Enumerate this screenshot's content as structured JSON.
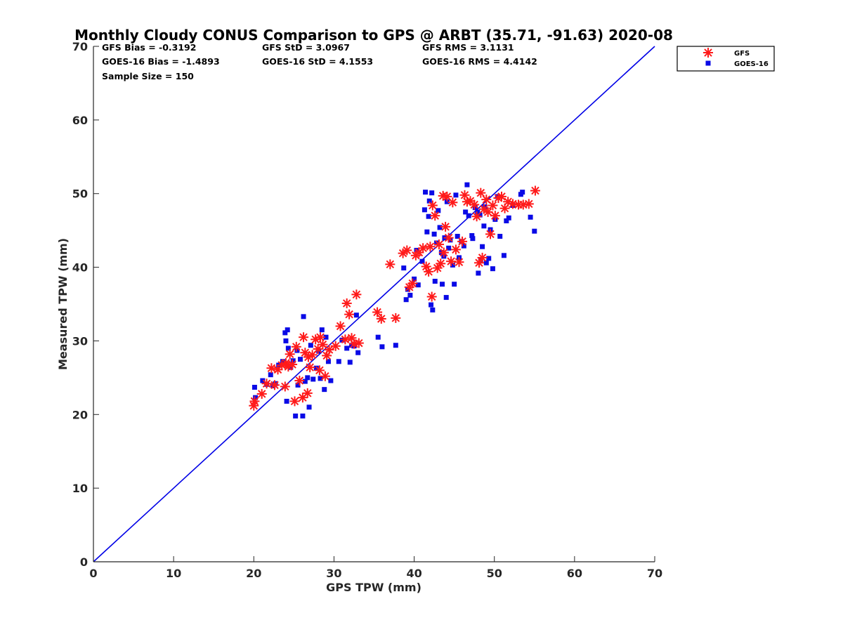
{
  "chart_data": {
    "type": "scatter",
    "title": "Monthly Cloudy CONUS Comparison to GPS @ ARBT (35.71, -91.63) 2020-08",
    "xlabel": "GPS TPW (mm)",
    "ylabel": "Measured TPW (mm)",
    "xlim": [
      0,
      70
    ],
    "ylim": [
      0,
      70
    ],
    "xticks": [
      0,
      10,
      20,
      30,
      40,
      50,
      60,
      70
    ],
    "yticks": [
      0,
      10,
      20,
      30,
      40,
      50,
      60,
      70
    ],
    "grid": false,
    "legend_position": "outside top-right",
    "reference_line": {
      "x": [
        0,
        70
      ],
      "y": [
        0,
        70
      ],
      "color": "#0000e6"
    },
    "stats": [
      "GFS Bias = -0.3192",
      "GFS StD = 3.0967",
      "GFS RMS = 3.1131",
      "GOES-16 Bias = -1.4893",
      "GOES-16 StD = 4.1553",
      "GOES-16 RMS = 4.4142",
      "Sample Size = 150"
    ],
    "series": [
      {
        "name": "GFS",
        "marker": "asterisk",
        "color": "#ff1a1a",
        "points": [
          [
            20.0,
            21.2
          ],
          [
            20.1,
            21.8
          ],
          [
            21.0,
            22.8
          ],
          [
            21.6,
            24.2
          ],
          [
            22.2,
            26.3
          ],
          [
            22.6,
            24.0
          ],
          [
            23.0,
            26.1
          ],
          [
            23.5,
            26.7
          ],
          [
            23.9,
            23.8
          ],
          [
            24.0,
            27.0
          ],
          [
            24.3,
            26.5
          ],
          [
            24.5,
            28.2
          ],
          [
            24.8,
            26.8
          ],
          [
            25.1,
            21.8
          ],
          [
            25.3,
            29.2
          ],
          [
            25.7,
            24.6
          ],
          [
            26.1,
            22.3
          ],
          [
            26.4,
            28.4
          ],
          [
            26.2,
            30.5
          ],
          [
            26.7,
            22.9
          ],
          [
            26.8,
            27.8
          ],
          [
            27.0,
            26.4
          ],
          [
            27.3,
            28.1
          ],
          [
            27.7,
            30.2
          ],
          [
            28.0,
            28.9
          ],
          [
            28.2,
            26.0
          ],
          [
            28.3,
            30.5
          ],
          [
            28.6,
            29.5
          ],
          [
            28.9,
            25.2
          ],
          [
            29.1,
            28.0
          ],
          [
            29.4,
            28.8
          ],
          [
            30.2,
            29.3
          ],
          [
            30.8,
            32.0
          ],
          [
            31.4,
            30.2
          ],
          [
            31.6,
            35.1
          ],
          [
            31.9,
            33.6
          ],
          [
            32.2,
            30.4
          ],
          [
            32.5,
            29.6
          ],
          [
            32.8,
            36.3
          ],
          [
            33.1,
            29.7
          ],
          [
            35.4,
            33.9
          ],
          [
            35.9,
            33.0
          ],
          [
            37.0,
            40.4
          ],
          [
            37.7,
            33.1
          ],
          [
            38.6,
            41.9
          ],
          [
            39.1,
            42.3
          ],
          [
            39.4,
            37.3
          ],
          [
            39.8,
            37.8
          ],
          [
            40.2,
            41.6
          ],
          [
            40.6,
            42.0
          ],
          [
            41.1,
            42.6
          ],
          [
            41.5,
            40.1
          ],
          [
            41.8,
            39.4
          ],
          [
            42.0,
            42.8
          ],
          [
            42.2,
            36.0
          ],
          [
            42.3,
            48.4
          ],
          [
            42.6,
            47.0
          ],
          [
            42.9,
            39.9
          ],
          [
            43.1,
            43.1
          ],
          [
            43.3,
            40.5
          ],
          [
            43.6,
            49.7
          ],
          [
            43.7,
            42.0
          ],
          [
            43.9,
            45.5
          ],
          [
            44.1,
            49.6
          ],
          [
            44.3,
            44.0
          ],
          [
            44.6,
            40.8
          ],
          [
            44.8,
            48.8
          ],
          [
            45.2,
            42.4
          ],
          [
            45.6,
            40.7
          ],
          [
            46.0,
            43.5
          ],
          [
            46.3,
            49.8
          ],
          [
            46.6,
            48.9
          ],
          [
            47.0,
            49.0
          ],
          [
            47.5,
            48.5
          ],
          [
            47.8,
            46.9
          ],
          [
            48.1,
            40.6
          ],
          [
            48.3,
            50.1
          ],
          [
            48.5,
            41.3
          ],
          [
            48.7,
            47.9
          ],
          [
            49.0,
            49.2
          ],
          [
            49.2,
            47.5
          ],
          [
            49.5,
            44.5
          ],
          [
            49.8,
            48.4
          ],
          [
            50.1,
            47.0
          ],
          [
            50.5,
            49.4
          ],
          [
            50.9,
            49.6
          ],
          [
            51.3,
            48.0
          ],
          [
            51.7,
            48.9
          ],
          [
            52.3,
            48.6
          ],
          [
            53.0,
            48.5
          ],
          [
            53.6,
            48.5
          ],
          [
            54.3,
            48.6
          ],
          [
            55.1,
            50.4
          ]
        ]
      },
      {
        "name": "GOES-16",
        "marker": "square",
        "color": "#0a0ae6",
        "points": [
          [
            20.1,
            23.7
          ],
          [
            20.2,
            22.3
          ],
          [
            21.1,
            24.6
          ],
          [
            21.6,
            24.1
          ],
          [
            22.1,
            25.4
          ],
          [
            22.4,
            23.9
          ],
          [
            22.7,
            24.2
          ],
          [
            23.1,
            26.7
          ],
          [
            23.6,
            27.2
          ],
          [
            23.9,
            31.1
          ],
          [
            24.0,
            30.0
          ],
          [
            24.1,
            21.8
          ],
          [
            24.2,
            31.5
          ],
          [
            24.3,
            29.0
          ],
          [
            24.6,
            26.4
          ],
          [
            24.9,
            27.3
          ],
          [
            25.2,
            19.8
          ],
          [
            25.4,
            28.7
          ],
          [
            25.5,
            24.0
          ],
          [
            25.8,
            27.5
          ],
          [
            26.1,
            19.8
          ],
          [
            26.2,
            33.3
          ],
          [
            26.4,
            24.5
          ],
          [
            26.7,
            25.0
          ],
          [
            26.9,
            21.0
          ],
          [
            27.1,
            29.4
          ],
          [
            27.4,
            24.8
          ],
          [
            27.8,
            26.3
          ],
          [
            28.1,
            28.6
          ],
          [
            28.3,
            24.9
          ],
          [
            28.5,
            31.5
          ],
          [
            28.8,
            23.4
          ],
          [
            29.0,
            30.5
          ],
          [
            29.3,
            27.2
          ],
          [
            29.6,
            24.6
          ],
          [
            30.6,
            27.2
          ],
          [
            31.0,
            30.1
          ],
          [
            31.6,
            29.0
          ],
          [
            32.0,
            27.1
          ],
          [
            32.2,
            29.4
          ],
          [
            32.5,
            29.3
          ],
          [
            32.8,
            33.5
          ],
          [
            33.0,
            28.4
          ],
          [
            35.5,
            30.5
          ],
          [
            36.0,
            29.2
          ],
          [
            37.7,
            29.4
          ],
          [
            38.7,
            39.9
          ],
          [
            39.0,
            35.6
          ],
          [
            39.2,
            37.0
          ],
          [
            39.5,
            36.2
          ],
          [
            40.0,
            38.4
          ],
          [
            40.3,
            42.3
          ],
          [
            40.5,
            37.6
          ],
          [
            41.0,
            40.8
          ],
          [
            41.3,
            47.8
          ],
          [
            41.4,
            50.2
          ],
          [
            41.6,
            44.8
          ],
          [
            41.8,
            46.9
          ],
          [
            41.9,
            49.0
          ],
          [
            42.1,
            34.9
          ],
          [
            42.2,
            50.1
          ],
          [
            42.3,
            34.2
          ],
          [
            42.5,
            44.5
          ],
          [
            42.6,
            38.1
          ],
          [
            42.8,
            43.3
          ],
          [
            43.0,
            47.7
          ],
          [
            43.2,
            45.4
          ],
          [
            43.4,
            42.0
          ],
          [
            43.5,
            37.7
          ],
          [
            43.7,
            41.5
          ],
          [
            43.8,
            44.0
          ],
          [
            44.0,
            35.9
          ],
          [
            44.1,
            48.9
          ],
          [
            44.3,
            42.6
          ],
          [
            44.5,
            43.7
          ],
          [
            44.8,
            40.3
          ],
          [
            45.0,
            37.7
          ],
          [
            45.2,
            49.8
          ],
          [
            45.4,
            44.2
          ],
          [
            45.6,
            41.3
          ],
          [
            45.9,
            43.5
          ],
          [
            46.2,
            42.9
          ],
          [
            46.4,
            47.5
          ],
          [
            46.6,
            51.2
          ],
          [
            46.8,
            47.0
          ],
          [
            47.2,
            44.3
          ],
          [
            47.6,
            48.1
          ],
          [
            47.9,
            47.5
          ],
          [
            48.0,
            39.2
          ],
          [
            48.3,
            41.0
          ],
          [
            48.5,
            42.8
          ],
          [
            48.7,
            45.6
          ],
          [
            48.8,
            48.2
          ],
          [
            49.0,
            40.6
          ],
          [
            49.3,
            41.2
          ],
          [
            49.5,
            45.1
          ],
          [
            49.8,
            39.8
          ],
          [
            50.1,
            46.5
          ],
          [
            50.4,
            49.6
          ],
          [
            50.7,
            44.2
          ],
          [
            51.2,
            41.6
          ],
          [
            51.5,
            46.3
          ],
          [
            51.8,
            46.7
          ],
          [
            52.3,
            48.4
          ],
          [
            53.3,
            49.9
          ],
          [
            53.5,
            50.2
          ],
          [
            54.5,
            46.8
          ],
          [
            55.0,
            44.9
          ],
          [
            48.2,
            47.1
          ],
          [
            47.3,
            43.9
          ]
        ]
      }
    ]
  }
}
